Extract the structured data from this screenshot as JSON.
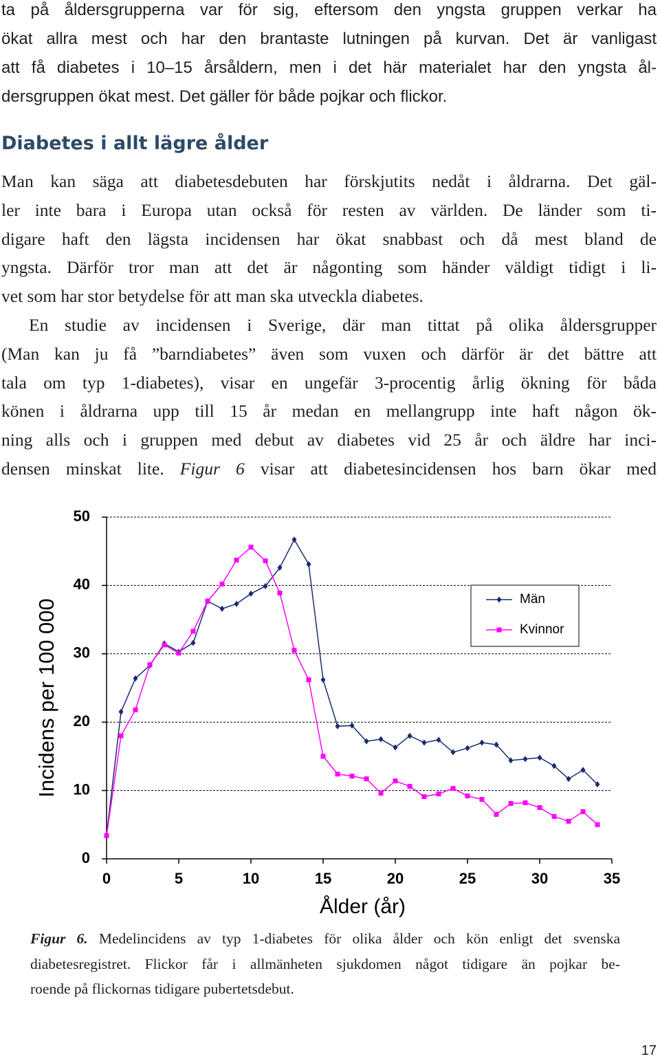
{
  "paragraph_1": {
    "lines": [
      "ta på åldersgrupperna var för sig, eftersom den yngsta gruppen verkar ha",
      "ökat allra mest och har den brantaste lutningen på kurvan. Det är vanligast",
      "att få diabetes i 10–15 årsåldern, men i det här materialet har den yngsta ål-",
      "dersgruppen ökat mest. Det gäller för både pojkar och flickor."
    ]
  },
  "heading": "Diabetes i allt lägre ålder",
  "paragraph_2": {
    "lines": [
      "Man kan säga att diabetesdebuten har förskjutits nedåt i åldrarna. Det gäl-",
      "ler inte bara i Europa utan också för resten av världen. De länder som ti-",
      "digare haft den lägsta incidensen har ökat snabbast och då mest bland de",
      "yngsta. Därför tror man att det är någonting som händer väldigt tidigt i li-",
      "vet som har stor betydelse för att man ska utveckla diabetes."
    ]
  },
  "paragraph_3": {
    "lines": [
      "En studie av incidensen i Sverige, där man tittat på olika åldersgrupper",
      "(Man kan ju få ”barndiabetes” även som vuxen och därför är det bättre att",
      "tala om typ 1-diabetes), visar en ungefär 3-procentig årlig ökning för båda",
      "könen i åldrarna upp till 15 år medan en mellangrupp inte haft någon ök-",
      "ning alls och i gruppen med debut av diabetes vid 25 år och äldre har inci-"
    ],
    "last_line": {
      "text_before": "densen minskat lite.",
      "emphasis": "Figur 6",
      "text_after": "visar att diabetesincidensen hos barn ökar med"
    }
  },
  "chart_data": {
    "type": "line",
    "x_label": "Ålder (år)",
    "y_label": "Incidens per 100 000",
    "x": [
      0,
      1,
      2,
      3,
      4,
      5,
      6,
      7,
      8,
      9,
      10,
      11,
      12,
      13,
      14,
      15,
      16,
      17,
      18,
      19,
      20,
      21,
      22,
      23,
      24,
      25,
      26,
      27,
      28,
      29,
      30,
      31,
      32,
      33,
      34
    ],
    "series": [
      {
        "name": "Män",
        "color": "#1b2a6e",
        "marker": "diamond",
        "values": [
          3.4,
          21.5,
          26.4,
          28.3,
          31.5,
          30.3,
          31.6,
          37.7,
          36.6,
          37.3,
          38.8,
          39.9,
          42.6,
          46.7,
          43.1,
          26.2,
          19.4,
          19.5,
          17.2,
          17.5,
          16.3,
          18.0,
          17.0,
          17.4,
          15.6,
          16.2,
          17.0,
          16.7,
          14.4,
          14.6,
          14.8,
          13.6,
          11.7,
          13.0,
          10.9
        ]
      },
      {
        "name": "Kvinnor",
        "color": "#ff00ff",
        "marker": "square",
        "values": [
          3.4,
          18.0,
          21.8,
          28.4,
          31.3,
          30.1,
          33.3,
          37.7,
          40.2,
          43.7,
          45.6,
          43.6,
          38.9,
          30.5,
          26.2,
          15.0,
          12.4,
          12.1,
          11.7,
          9.6,
          11.4,
          10.6,
          9.1,
          9.5,
          10.3,
          9.2,
          8.7,
          6.5,
          8.1,
          8.2,
          7.5,
          6.2,
          5.5,
          6.9,
          5.0
        ]
      }
    ],
    "xlim": [
      0,
      35
    ],
    "xticks": [
      0,
      5,
      10,
      15,
      20,
      25,
      30,
      35
    ],
    "ylim": [
      0,
      50
    ],
    "yticks": [
      0,
      10,
      20,
      30,
      40,
      50
    ],
    "grid": true,
    "legend": "upper right"
  },
  "caption": {
    "label": "Figur 6.",
    "lines": [
      "Medelincidens av typ 1-diabetes för olika ålder och kön enligt det svenska",
      "diabetesregistret. Flickor får i allmänheten sjukdomen något tidigare än pojkar be-",
      "roende på flickornas tidigare pubertetsdebut."
    ]
  },
  "page_number": "17"
}
